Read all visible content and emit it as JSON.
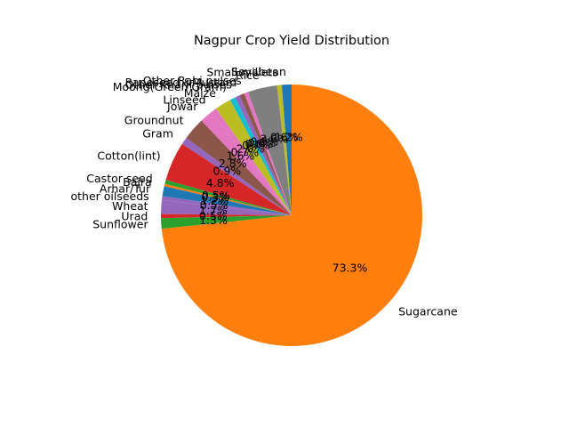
{
  "chart_data": {
    "type": "pie",
    "title": "Nagpur Crop Yield Distribution",
    "start_angle_deg": 90,
    "autopct_format": "%1.1f%%",
    "labels": [
      "Soyabean",
      "Small millets",
      "Rice",
      "Other Rabi pulses",
      "Rapeseed &Mustard",
      "Other Kharif pulses",
      "Moong(Green Gram)",
      "Maize",
      "Linseed",
      "Jowar",
      "Groundnut",
      "Gram",
      "Cotton(lint)",
      "Castor seed",
      "Bajra",
      "Arhar/Tur",
      "other oilseeds",
      "Wheat",
      "Urad",
      "Sunflower",
      "Sugarcane"
    ],
    "values": [
      1.2,
      0.6,
      3.6,
      0.5,
      0.6,
      0.6,
      0.7,
      2.0,
      0.7,
      1.6,
      2.8,
      0.9,
      4.8,
      0.5,
      0.3,
      1.2,
      0.5,
      1.7,
      0.5,
      1.3,
      73.2
    ],
    "colors": [
      "#1f77b4",
      "#bcbd22",
      "#7f7f7f",
      "#e377c2",
      "#8c564b",
      "#9467bd",
      "#17becf",
      "#bcbd22",
      "#e377c2",
      "#e377c2",
      "#8c564b",
      "#9467bd",
      "#d62728",
      "#2ca02c",
      "#ff7f0e",
      "#1f77b4",
      "#9467bd",
      "#9467bd",
      "#d62728",
      "#2ca02c",
      "#ff7f0e"
    ]
  }
}
